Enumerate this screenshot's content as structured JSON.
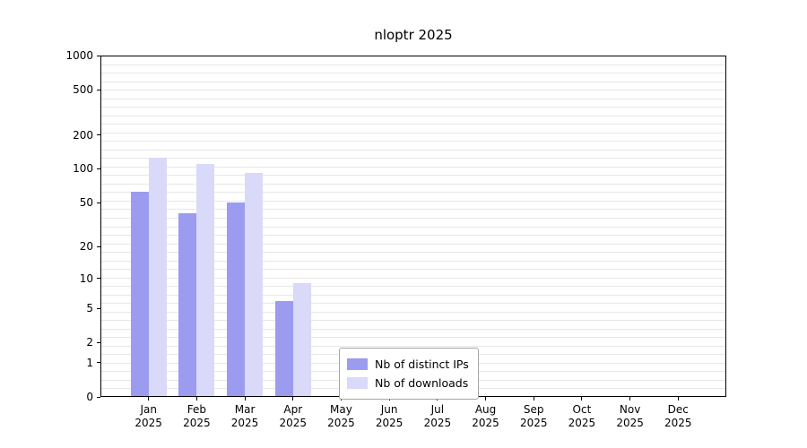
{
  "chart_data": {
    "type": "bar",
    "title": "nloptr 2025",
    "x_categories": [
      "Jan",
      "Feb",
      "Mar",
      "Apr",
      "May",
      "Jun",
      "Jul",
      "Aug",
      "Sep",
      "Oct",
      "Nov",
      "Dec"
    ],
    "x_year": "2025",
    "series": [
      {
        "name": "Nb of distinct IPs",
        "color": "#9b9bef",
        "values": [
          63,
          40,
          50,
          6,
          0,
          0,
          0,
          0,
          0,
          0,
          0,
          0
        ]
      },
      {
        "name": "Nb of downloads",
        "color": "#d9d9f9",
        "values": [
          125,
          110,
          92,
          9,
          0,
          0,
          0,
          0,
          0,
          0,
          0,
          0
        ]
      }
    ],
    "y_scale": "log1p",
    "y_ticks": [
      0,
      1,
      2,
      5,
      10,
      20,
      50,
      100,
      200,
      500,
      1000
    ],
    "ylim": [
      0,
      1000
    ],
    "xlabel": "",
    "ylabel": "",
    "grid": true,
    "legend": {
      "position": "inside-bottom-center",
      "entries": [
        "Nb of distinct IPs",
        "Nb of downloads"
      ]
    }
  },
  "colors": {
    "grid": "#e7e7e7",
    "axis": "#000000",
    "bar_distinct_ips": "#9b9bef",
    "bar_downloads": "#d9d9f9",
    "legend_border": "#a6a6a6"
  }
}
